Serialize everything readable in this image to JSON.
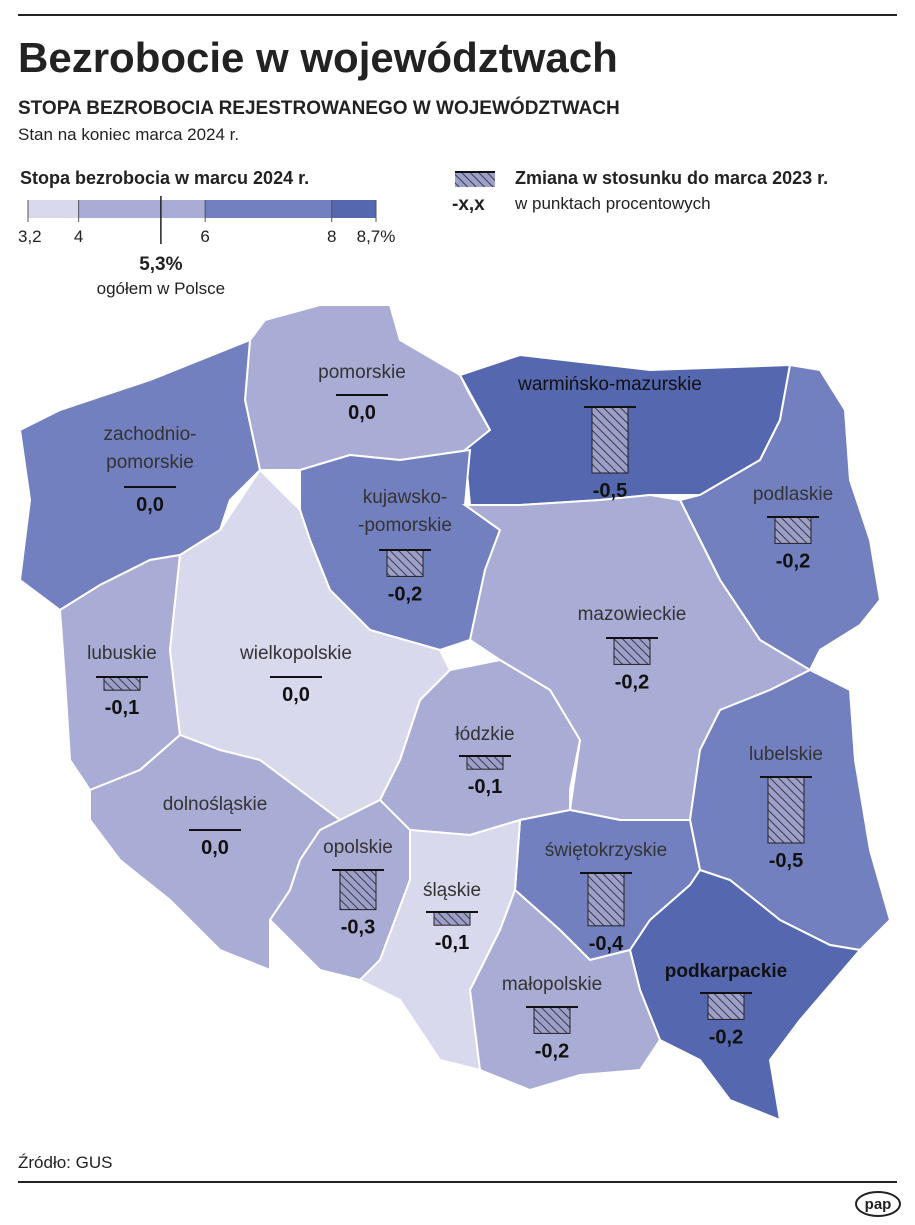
{
  "header": {
    "title": "Bezrobocie w województwach",
    "subtitle": "STOPA BEZROBOCIA REJESTROWANEGO W WOJEWÓDZTWACH",
    "note": "Stan na koniec marca 2024 r."
  },
  "legend": {
    "title": "Stopa bezrobocia w marcu 2024 r.",
    "ticks": [
      {
        "value": 3.2,
        "label": "3,2"
      },
      4,
      6,
      8,
      {
        "value": 8.7,
        "label": "8,7%"
      }
    ],
    "colors": [
      "#d8d9ec",
      "#a9acd4",
      "#7280bf",
      "#5567ae"
    ],
    "national": {
      "value": 5.3,
      "label": "5,3%",
      "text": "ogółem w Polsce"
    },
    "change_title": "Zmiana w stosunku do marca 2023  r.",
    "change_sample": "-x,x",
    "change_unit": "w punktach procentowych"
  },
  "regions": [
    {
      "name": [
        "pomorskie"
      ],
      "color": "#a9acd4",
      "change": 0,
      "change_label": "0,0"
    },
    {
      "name": [
        "warmińsko-mazurskie"
      ],
      "color": "#5567ae",
      "change": -0.5,
      "change_label": "-0,5"
    },
    {
      "name": [
        "zachodnio-",
        "pomorskie"
      ],
      "color": "#7280bf",
      "change": 0,
      "change_label": "0,0"
    },
    {
      "name": [
        "podlaskie"
      ],
      "color": "#7280bf",
      "change": -0.2,
      "change_label": "-0,2"
    },
    {
      "name": [
        "kujawsko-",
        "-pomorskie"
      ],
      "color": "#7280bf",
      "change": -0.2,
      "change_label": "-0,2"
    },
    {
      "name": [
        "mazowieckie"
      ],
      "color": "#a9acd4",
      "change": -0.2,
      "change_label": "-0,2"
    },
    {
      "name": [
        "lubuskie"
      ],
      "color": "#a9acd4",
      "change": -0.1,
      "change_label": "-0,1"
    },
    {
      "name": [
        "wielkopolskie"
      ],
      "color": "#d8d9ec",
      "change": 0,
      "change_label": "0,0"
    },
    {
      "name": [
        "łódzkie"
      ],
      "color": "#a9acd4",
      "change": -0.1,
      "change_label": "-0,1"
    },
    {
      "name": [
        "lubelskie"
      ],
      "color": "#7280bf",
      "change": -0.5,
      "change_label": "-0,5"
    },
    {
      "name": [
        "dolnośląskie"
      ],
      "color": "#a9acd4",
      "change": 0,
      "change_label": "0,0"
    },
    {
      "name": [
        "opolskie"
      ],
      "color": "#a9acd4",
      "change": -0.3,
      "change_label": "-0,3"
    },
    {
      "name": [
        "świętokrzyskie"
      ],
      "color": "#7280bf",
      "change": -0.4,
      "change_label": "-0,4"
    },
    {
      "name": [
        "śląskie"
      ],
      "color": "#d8d9ec",
      "change": -0.1,
      "change_label": "-0,1"
    },
    {
      "name": [
        "podkarpackie"
      ],
      "color": "#5567ae",
      "change": -0.2,
      "change_label": "-0,2"
    },
    {
      "name": [
        "małopolskie"
      ],
      "color": "#a9acd4",
      "change": -0.2,
      "change_label": "-0,2"
    }
  ],
  "footer": {
    "source": "Źródło: GUS",
    "logo": "pap"
  }
}
